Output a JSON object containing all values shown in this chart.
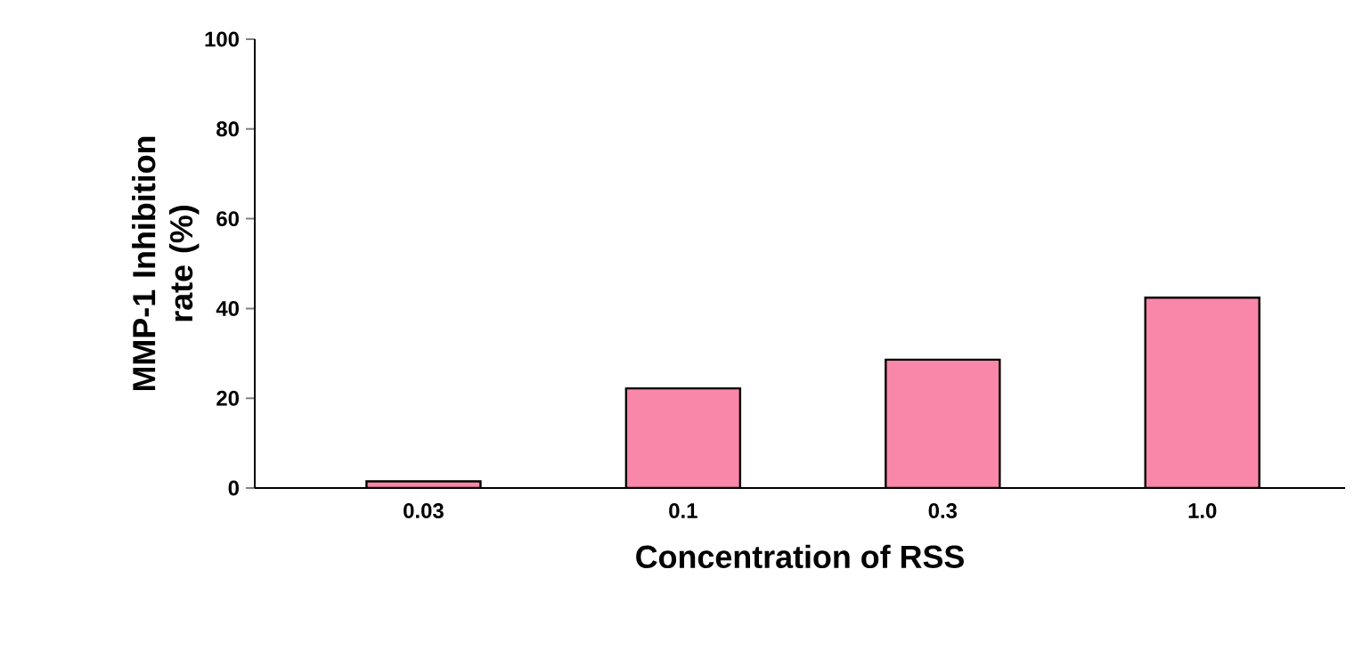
{
  "chart_data": {
    "type": "bar",
    "xlabel": "Concentration of RSS",
    "ylabel": "MMP-1 Inhibition rate (%)",
    "categories": [
      "0.03",
      "0.1",
      "0.3",
      "1.0"
    ],
    "values": [
      1.5,
      22.2,
      28.6,
      42.4
    ],
    "color": "#f987a9",
    "ylim": [
      0,
      100
    ],
    "yticks": [
      0,
      20,
      40,
      60,
      80,
      100
    ],
    "grid": false
  }
}
